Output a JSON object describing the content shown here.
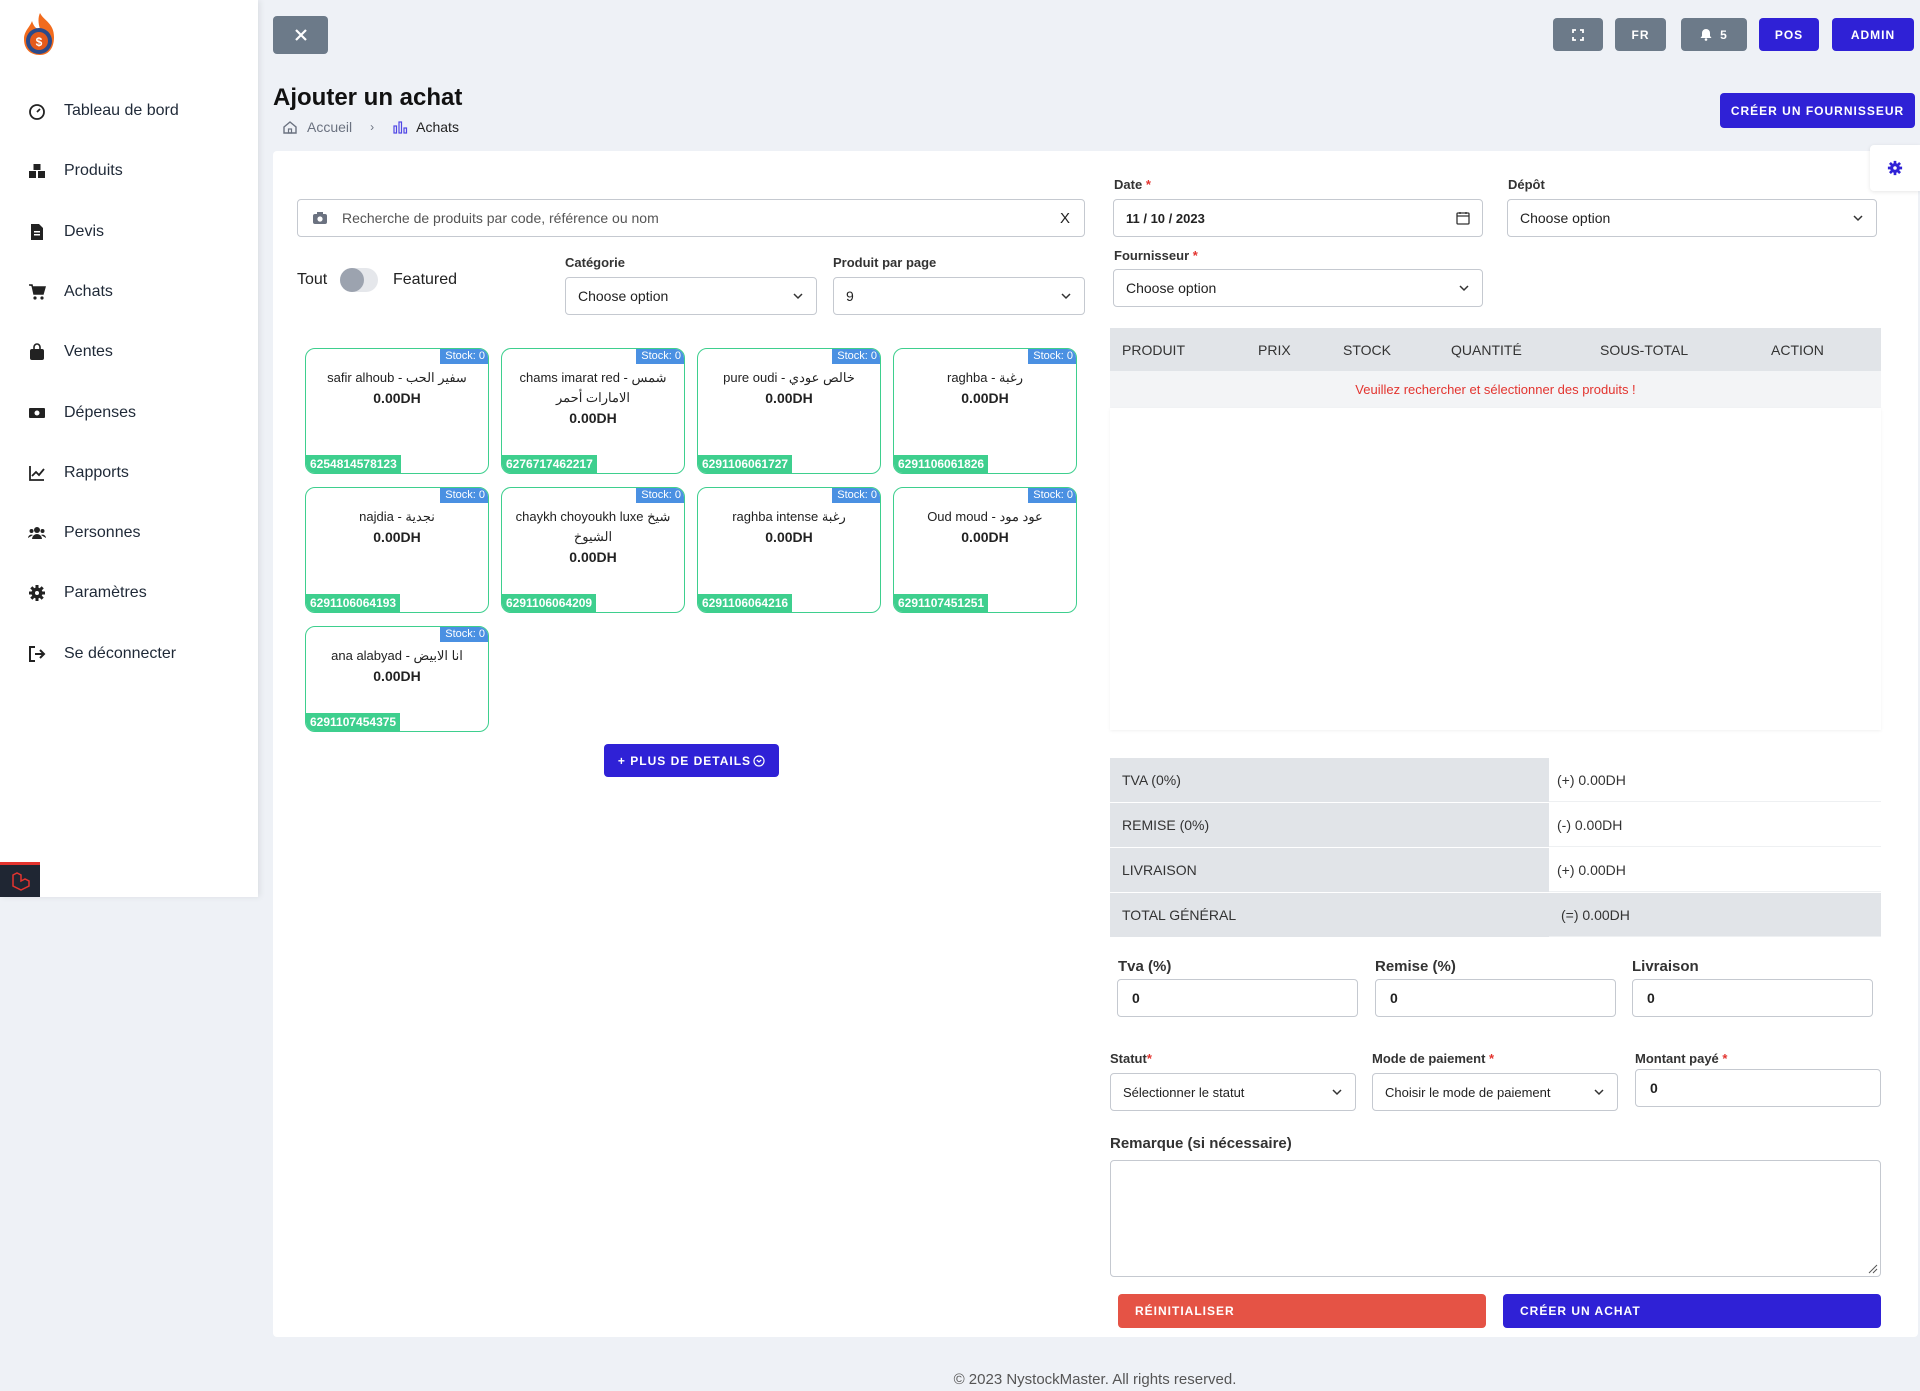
{
  "sidebar": {
    "items": [
      {
        "label": "Tableau de bord",
        "icon": "dashboard-icon"
      },
      {
        "label": "Produits",
        "icon": "boxes-icon"
      },
      {
        "label": "Devis",
        "icon": "file-icon"
      },
      {
        "label": "Achats",
        "icon": "cart-icon"
      },
      {
        "label": "Ventes",
        "icon": "bag-icon"
      },
      {
        "label": "Dépenses",
        "icon": "money-icon"
      },
      {
        "label": "Rapports",
        "icon": "chart-line-icon"
      },
      {
        "label": "Personnes",
        "icon": "users-icon"
      },
      {
        "label": "Paramètres",
        "icon": "gear-icon"
      },
      {
        "label": "Se déconnecter",
        "icon": "logout-icon"
      }
    ]
  },
  "header": {
    "lang": "FR",
    "notif_count": "5",
    "pos": "POS",
    "admin": "ADMIN"
  },
  "page": {
    "title": "Ajouter un achat",
    "crumb_home": "Accueil",
    "crumb_current": "Achats",
    "create_supplier": "CRÉER UN FOURNISSEUR"
  },
  "search": {
    "placeholder": "Recherche de produits par code, référence ou nom",
    "clear": "X"
  },
  "filters": {
    "all": "Tout",
    "featured": "Featured",
    "category_label": "Catégorie",
    "category_value": "Choose option",
    "per_page_label": "Produit par page",
    "per_page_value": "9"
  },
  "products": [
    {
      "name": "safir alhoub - سفير الحب",
      "price": "0.00DH",
      "stock": "Stock: 0",
      "code": "6254814578123"
    },
    {
      "name": "chams imarat red - شمس الامارات أحمر",
      "price": "0.00DH",
      "stock": "Stock: 0",
      "code": "6276717462217"
    },
    {
      "name": "pure oudi - خالص عودي",
      "price": "0.00DH",
      "stock": "Stock: 0",
      "code": "6291106061727"
    },
    {
      "name": "raghba - رغبة",
      "price": "0.00DH",
      "stock": "Stock: 0",
      "code": "6291106061826"
    },
    {
      "name": "najdia - نجدية",
      "price": "0.00DH",
      "stock": "Stock: 0",
      "code": "6291106064193"
    },
    {
      "name": "chaykh choyoukh luxe شيخ الشيوخ",
      "price": "0.00DH",
      "stock": "Stock: 0",
      "code": "6291106064209"
    },
    {
      "name": "raghba intense رغبة",
      "price": "0.00DH",
      "stock": "Stock: 0",
      "code": "6291106064216"
    },
    {
      "name": "Oud moud - عود مود",
      "price": "0.00DH",
      "stock": "Stock: 0",
      "code": "6291107451251"
    },
    {
      "name": "ana alabyad - انا الابيض",
      "price": "0.00DH",
      "stock": "Stock: 0",
      "code": "6291107454375"
    }
  ],
  "more_details": "+ PLUS DE DETAILS",
  "form": {
    "date_label": "Date",
    "date_value": "11 / 10 / 2023",
    "depot_label": "Dépôt",
    "depot_value": "Choose option",
    "supplier_label": "Fournisseur",
    "supplier_value": "Choose option"
  },
  "table": {
    "headers": [
      "PRODUIT",
      "PRIX",
      "STOCK",
      "QUANTITÉ",
      "SOUS-TOTAL",
      "ACTION"
    ],
    "empty": "Veuillez rechercher et sélectionner des produits !"
  },
  "summary": [
    {
      "label": "TVA (0%)",
      "value": "(+) 0.00DH"
    },
    {
      "label": "REMISE (0%)",
      "value": "(-) 0.00DH"
    },
    {
      "label": "LIVRAISON",
      "value": "(+) 0.00DH"
    },
    {
      "label": "TOTAL GÉNÉRAL",
      "value": "(=) 0.00DH"
    }
  ],
  "inputs": {
    "tva_label": "Tva (%)",
    "tva": "0",
    "remise_label": "Remise (%)",
    "remise": "0",
    "livraison_label": "Livraison",
    "livraison": "0"
  },
  "status": {
    "label": "Statut",
    "value": "Sélectionner le statut"
  },
  "payment": {
    "label": "Mode de paiement",
    "value": "Choisir le mode de paiement",
    "paid_label": "Montant payé",
    "paid": "0"
  },
  "note": {
    "label": "Remarque (si nécessaire)"
  },
  "actions": {
    "reset": "RÉINITIALISER",
    "create": "CRÉER UN ACHAT"
  },
  "footer": "© 2023 NystockMaster. All rights reserved."
}
